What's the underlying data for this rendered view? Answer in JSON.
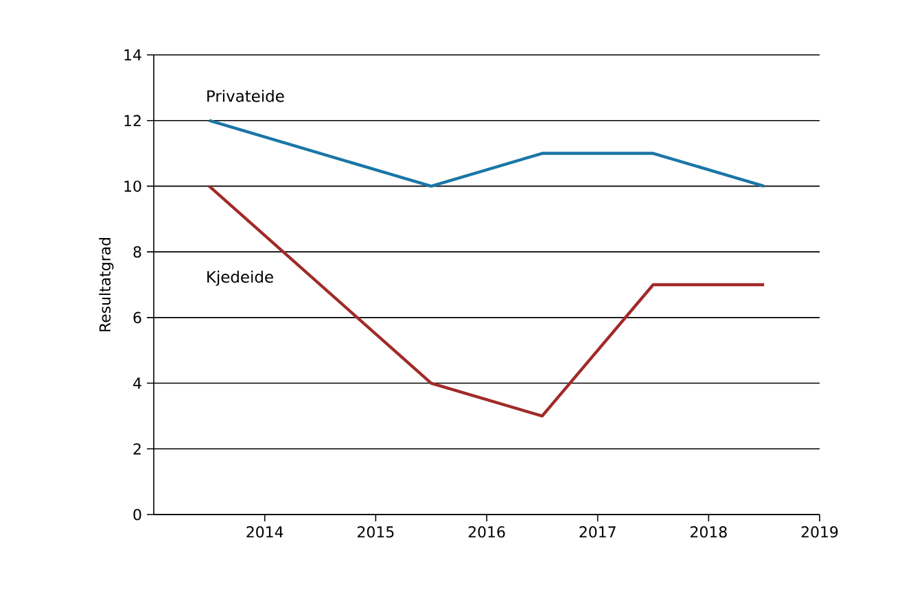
{
  "chart_data": {
    "type": "line",
    "ylabel": "Resultatgrad",
    "x": [
      2013.5,
      2015.5,
      2016.5,
      2017.5,
      2018.5
    ],
    "series": [
      {
        "name": "Privateide",
        "color": "#1a76a6",
        "values": [
          12,
          10,
          11,
          11,
          10
        ]
      },
      {
        "name": "Kjedeide",
        "color": "#a12a28",
        "values": [
          10,
          4,
          3,
          7,
          7
        ]
      }
    ],
    "xlim": [
      2013,
      2019
    ],
    "xticks": [
      2014,
      2015,
      2016,
      2017,
      2018,
      2019
    ],
    "ylim": [
      0,
      14
    ],
    "yticks": [
      0,
      2,
      4,
      6,
      8,
      10,
      12,
      14
    ],
    "grid": "y",
    "legend": false,
    "marker": "none",
    "line_style": "solid"
  }
}
